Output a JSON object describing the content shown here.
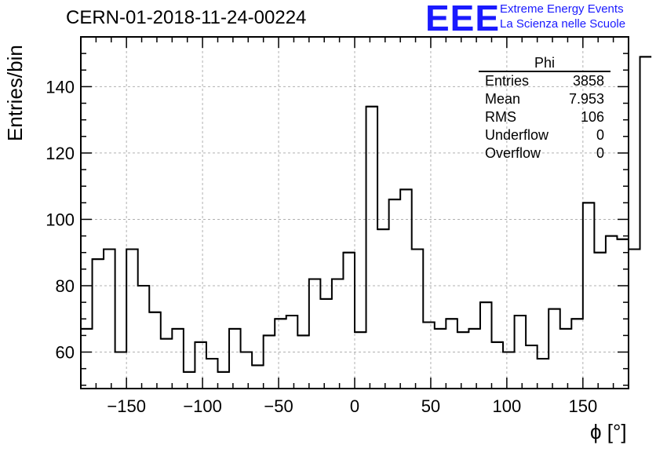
{
  "title": "CERN-01-2018-11-24-00224",
  "logo": {
    "mark": "EEE",
    "line1": "Extreme Energy Events",
    "line2": "La Scienza nelle Scuole",
    "color": "#1a1aff"
  },
  "stats": {
    "name": "Phi",
    "rows": [
      {
        "label": "Entries",
        "value": "3858"
      },
      {
        "label": "Mean",
        "value": "7.953"
      },
      {
        "label": "RMS",
        "value": "106"
      },
      {
        "label": "Underflow",
        "value": "0"
      },
      {
        "label": "Overflow",
        "value": "0"
      }
    ]
  },
  "chart_data": {
    "type": "bar",
    "style": "step histogram",
    "title": "CERN-01-2018-11-24-00224",
    "xlabel": "ϕ [°]",
    "ylabel": "Entries/bin",
    "xlim": [
      -180,
      180
    ],
    "ylim": [
      49,
      155
    ],
    "grid": true,
    "bin_width": 7.5,
    "bin_edges_start": -180,
    "values": [
      67,
      88,
      91,
      60,
      91,
      80,
      72,
      64,
      67,
      54,
      63,
      58,
      54,
      67,
      60,
      56,
      65,
      70,
      71,
      65,
      82,
      76,
      82,
      90,
      66,
      134,
      97,
      106,
      109,
      91,
      69,
      67,
      70,
      66,
      67,
      75,
      63,
      60,
      71,
      62,
      58,
      73,
      67,
      70,
      105,
      90,
      95,
      94,
      91
    ],
    "last_bin_value": 149,
    "x_ticks": [
      -150,
      -100,
      -50,
      0,
      50,
      100,
      150
    ],
    "x_tick_labels": [
      "−150",
      "−100",
      "−50",
      "0",
      "50",
      "100",
      "150"
    ],
    "y_ticks": [
      60,
      80,
      100,
      120,
      140
    ],
    "y_tick_labels": [
      "60",
      "80",
      "100",
      "120",
      "140"
    ]
  }
}
